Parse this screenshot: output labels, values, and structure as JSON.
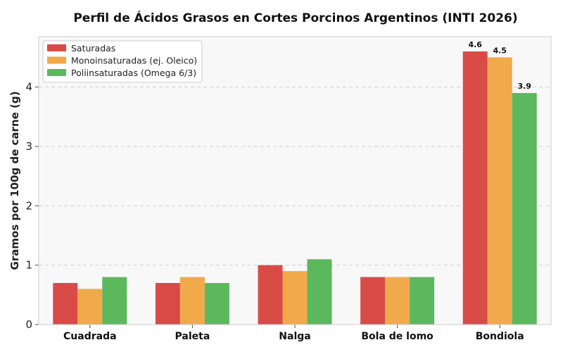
{
  "chart_data": {
    "type": "bar",
    "title": "Perfil de Ácidos Grasos en Cortes Porcinos Argentinos (INTI 2026)",
    "xlabel": "",
    "ylabel": "Gramos por 100g de carne (g)",
    "categories": [
      "Cuadrada",
      "Paleta",
      "Nalga",
      "Bola de lomo",
      "Bondiola"
    ],
    "series": [
      {
        "name": "Saturadas",
        "color": "#d94b47",
        "values": [
          0.7,
          0.7,
          1.0,
          0.8,
          4.6
        ]
      },
      {
        "name": "Monoinsaturadas (ej. Oleico)",
        "color": "#f0aa4c",
        "values": [
          0.6,
          0.8,
          0.9,
          0.8,
          4.5
        ]
      },
      {
        "name": "Poliinsaturadas (Omega 6/3)",
        "color": "#5cb85c",
        "values": [
          0.8,
          0.7,
          1.1,
          0.8,
          3.9
        ]
      }
    ],
    "data_labels": {
      "category": "Bondiola",
      "labels": [
        "4.6",
        "4.5",
        "3.9"
      ]
    },
    "ylim": [
      0,
      4.85
    ],
    "yticks": [
      0,
      1,
      2,
      3,
      4
    ],
    "grid": true,
    "legend_position": "top-left",
    "background": "#f8f8f8"
  }
}
